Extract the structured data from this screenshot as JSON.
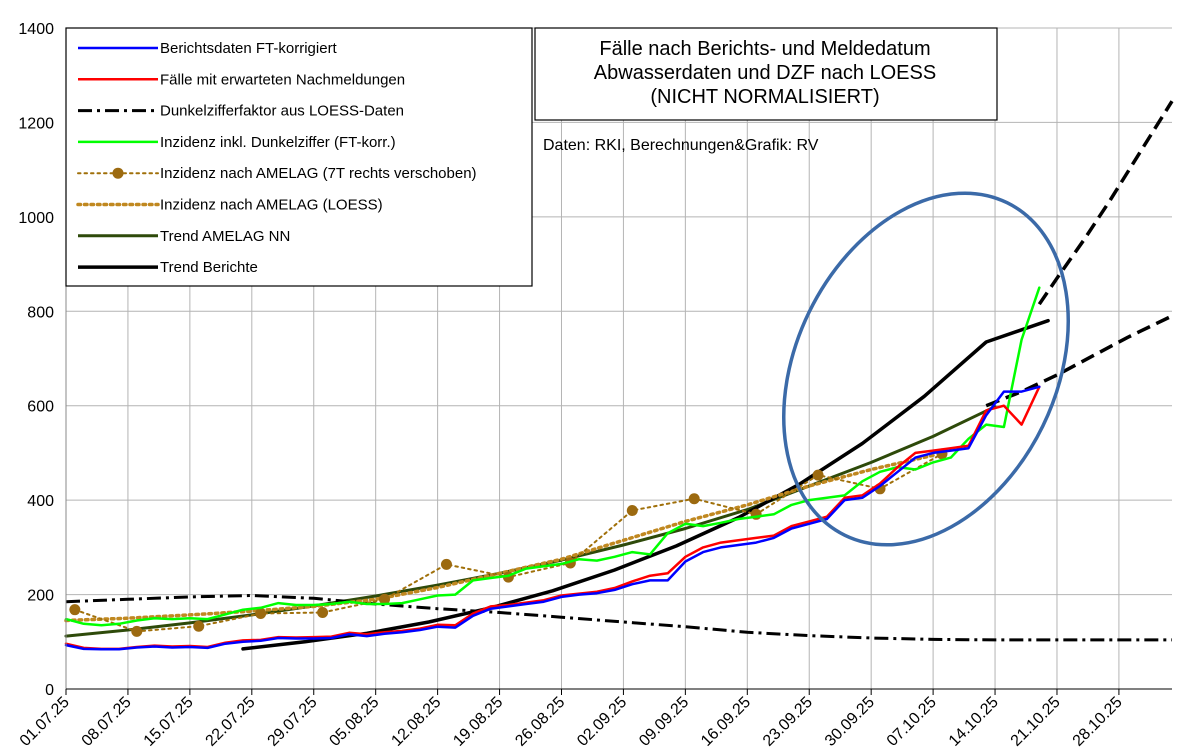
{
  "chart_data": {
    "type": "line",
    "title": [
      "Fälle nach Berichts- und Meldedatum",
      "Abwasserdaten und DZF nach LOESS",
      "(NICHT NORMALISIERT)"
    ],
    "source": "Daten: RKI, Berechnungen&Grafik: RV",
    "xlabel": "",
    "ylabel": "",
    "ylim": [
      0,
      1400
    ],
    "yticks": [
      0,
      200,
      400,
      600,
      800,
      1000,
      1200,
      1400
    ],
    "xlim": [
      "2025-07-01",
      "2025-11-03"
    ],
    "xtick_labels": [
      "01.07.25",
      "08.07.25",
      "15.07.25",
      "22.07.25",
      "29.07.25",
      "05.08.25",
      "12.08.25",
      "19.08.25",
      "26.08.25",
      "02.09.25",
      "09.09.25",
      "16.09.25",
      "23.09.25",
      "30.09.25",
      "07.10.25",
      "14.10.25",
      "21.10.25",
      "28.10.25"
    ],
    "xtick_dates": [
      "2025-07-01",
      "2025-07-08",
      "2025-07-15",
      "2025-07-22",
      "2025-07-29",
      "2025-08-05",
      "2025-08-12",
      "2025-08-19",
      "2025-08-26",
      "2025-09-02",
      "2025-09-09",
      "2025-09-16",
      "2025-09-23",
      "2025-09-30",
      "2025-10-07",
      "2025-10-14",
      "2025-10-21",
      "2025-10-28"
    ],
    "grid": true,
    "legend_position": "top-left",
    "series": [
      {
        "name": "Berichtsdaten FT-korrigiert",
        "color": "#0000ff",
        "style": "solid",
        "x": [
          "2025-07-01",
          "2025-07-03",
          "2025-07-05",
          "2025-07-07",
          "2025-07-09",
          "2025-07-11",
          "2025-07-13",
          "2025-07-15",
          "2025-07-17",
          "2025-07-19",
          "2025-07-21",
          "2025-07-23",
          "2025-07-25",
          "2025-07-27",
          "2025-07-29",
          "2025-07-31",
          "2025-08-02",
          "2025-08-04",
          "2025-08-06",
          "2025-08-08",
          "2025-08-10",
          "2025-08-12",
          "2025-08-14",
          "2025-08-16",
          "2025-08-18",
          "2025-08-20",
          "2025-08-22",
          "2025-08-24",
          "2025-08-26",
          "2025-08-28",
          "2025-08-30",
          "2025-09-01",
          "2025-09-03",
          "2025-09-05",
          "2025-09-07",
          "2025-09-09",
          "2025-09-11",
          "2025-09-13",
          "2025-09-15",
          "2025-09-17",
          "2025-09-19",
          "2025-09-21",
          "2025-09-23",
          "2025-09-25",
          "2025-09-27",
          "2025-09-29",
          "2025-10-01",
          "2025-10-03",
          "2025-10-05",
          "2025-10-07",
          "2025-10-09",
          "2025-10-11",
          "2025-10-13",
          "2025-10-15",
          "2025-10-17",
          "2025-10-19"
        ],
        "y": [
          93,
          85,
          84,
          84,
          88,
          90,
          88,
          89,
          87,
          96,
          100,
          102,
          108,
          107,
          107,
          108,
          116,
          112,
          117,
          120,
          125,
          132,
          130,
          155,
          170,
          175,
          180,
          185,
          195,
          200,
          203,
          210,
          222,
          230,
          230,
          270,
          290,
          300,
          305,
          310,
          320,
          340,
          350,
          360,
          400,
          405,
          430,
          460,
          490,
          500,
          505,
          510,
          580,
          630,
          630,
          640
        ]
      },
      {
        "name": "Fälle mit erwarteten Nachmeldungen",
        "color": "#ff0000",
        "style": "solid",
        "x": [
          "2025-07-01",
          "2025-07-03",
          "2025-07-05",
          "2025-07-07",
          "2025-07-09",
          "2025-07-11",
          "2025-07-13",
          "2025-07-15",
          "2025-07-17",
          "2025-07-19",
          "2025-07-21",
          "2025-07-23",
          "2025-07-25",
          "2025-07-27",
          "2025-07-29",
          "2025-07-31",
          "2025-08-02",
          "2025-08-04",
          "2025-08-06",
          "2025-08-08",
          "2025-08-10",
          "2025-08-12",
          "2025-08-14",
          "2025-08-16",
          "2025-08-18",
          "2025-08-20",
          "2025-08-22",
          "2025-08-24",
          "2025-08-26",
          "2025-08-28",
          "2025-08-30",
          "2025-09-01",
          "2025-09-03",
          "2025-09-05",
          "2025-09-07",
          "2025-09-09",
          "2025-09-11",
          "2025-09-13",
          "2025-09-15",
          "2025-09-17",
          "2025-09-19",
          "2025-09-21",
          "2025-09-23",
          "2025-09-25",
          "2025-09-27",
          "2025-09-29",
          "2025-10-01",
          "2025-10-03",
          "2025-10-05",
          "2025-10-07",
          "2025-10-09",
          "2025-10-11",
          "2025-10-13",
          "2025-10-15",
          "2025-10-17",
          "2025-10-19"
        ],
        "y": [
          96,
          87,
          85,
          85,
          89,
          92,
          90,
          91,
          89,
          98,
          103,
          104,
          110,
          109,
          110,
          111,
          119,
          116,
          120,
          123,
          128,
          136,
          135,
          160,
          175,
          178,
          183,
          188,
          198,
          202,
          206,
          214,
          228,
          240,
          245,
          280,
          300,
          310,
          315,
          320,
          325,
          345,
          355,
          365,
          405,
          410,
          435,
          470,
          500,
          505,
          510,
          515,
          590,
          600,
          560,
          640
        ]
      },
      {
        "name": "Dunkelzifferfaktor aus LOESS-Daten",
        "color": "#000000",
        "style": "dashdot",
        "x": [
          "2025-07-01",
          "2025-07-08",
          "2025-07-15",
          "2025-07-22",
          "2025-07-29",
          "2025-08-05",
          "2025-08-12",
          "2025-08-19",
          "2025-08-26",
          "2025-09-02",
          "2025-09-09",
          "2025-09-16",
          "2025-09-23",
          "2025-09-30",
          "2025-10-07",
          "2025-10-14",
          "2025-10-21",
          "2025-10-28",
          "2025-11-03"
        ],
        "y": [
          185,
          190,
          195,
          198,
          192,
          180,
          170,
          162,
          152,
          142,
          132,
          120,
          113,
          108,
          105,
          104,
          104,
          104,
          104
        ]
      },
      {
        "name": "Inzidenz inkl. Dunkelziffer (FT-korr.)",
        "color": "#00ff00",
        "style": "solid",
        "x": [
          "2025-07-01",
          "2025-07-03",
          "2025-07-05",
          "2025-07-07",
          "2025-07-09",
          "2025-07-11",
          "2025-07-13",
          "2025-07-15",
          "2025-07-17",
          "2025-07-19",
          "2025-07-21",
          "2025-07-23",
          "2025-07-25",
          "2025-07-27",
          "2025-07-29",
          "2025-07-31",
          "2025-08-02",
          "2025-08-04",
          "2025-08-06",
          "2025-08-08",
          "2025-08-10",
          "2025-08-12",
          "2025-08-14",
          "2025-08-16",
          "2025-08-18",
          "2025-08-20",
          "2025-08-22",
          "2025-08-24",
          "2025-08-26",
          "2025-08-28",
          "2025-08-30",
          "2025-09-01",
          "2025-09-03",
          "2025-09-05",
          "2025-09-07",
          "2025-09-09",
          "2025-09-11",
          "2025-09-13",
          "2025-09-15",
          "2025-09-17",
          "2025-09-19",
          "2025-09-21",
          "2025-09-23",
          "2025-09-25",
          "2025-09-27",
          "2025-09-29",
          "2025-10-01",
          "2025-10-03",
          "2025-10-05",
          "2025-10-07",
          "2025-10-09",
          "2025-10-11",
          "2025-10-13",
          "2025-10-15",
          "2025-10-17",
          "2025-10-19"
        ],
        "y": [
          148,
          138,
          135,
          138,
          145,
          150,
          148,
          150,
          148,
          158,
          168,
          172,
          182,
          178,
          178,
          180,
          185,
          180,
          180,
          182,
          190,
          198,
          200,
          230,
          235,
          240,
          255,
          260,
          265,
          275,
          272,
          280,
          290,
          285,
          330,
          350,
          345,
          352,
          360,
          365,
          370,
          390,
          400,
          405,
          410,
          440,
          460,
          470,
          465,
          480,
          490,
          530,
          560,
          555,
          740,
          850
        ]
      },
      {
        "name": "Inzidenz nach AMELAG (7T rechts verschoben)",
        "color": "#a0700a",
        "style": "dotted-markers",
        "x": [
          "2025-07-02",
          "2025-07-09",
          "2025-07-16",
          "2025-07-23",
          "2025-07-30",
          "2025-08-06",
          "2025-08-13",
          "2025-08-20",
          "2025-08-27",
          "2025-09-03",
          "2025-09-10",
          "2025-09-17",
          "2025-09-24",
          "2025-10-01",
          "2025-10-08"
        ],
        "y": [
          168,
          122,
          133,
          160,
          162,
          190,
          264,
          237,
          267,
          378,
          403,
          370,
          453,
          424,
          498
        ]
      },
      {
        "name": "Inzidenz nach AMELAG (LOESS)",
        "color": "#c08820",
        "style": "dotted",
        "x": [
          "2025-07-01",
          "2025-07-08",
          "2025-07-15",
          "2025-07-22",
          "2025-07-29",
          "2025-08-05",
          "2025-08-12",
          "2025-08-19",
          "2025-08-26",
          "2025-09-02",
          "2025-09-09",
          "2025-09-16",
          "2025-09-23",
          "2025-09-30",
          "2025-10-07"
        ],
        "y": [
          145,
          150,
          157,
          165,
          175,
          190,
          215,
          245,
          275,
          315,
          355,
          390,
          430,
          465,
          495
        ]
      },
      {
        "name": "Trend AMELAG NN",
        "color": "#2e4a0a",
        "style": "solid",
        "x": [
          "2025-07-01",
          "2025-07-08",
          "2025-07-15",
          "2025-07-22",
          "2025-07-29",
          "2025-08-05",
          "2025-08-12",
          "2025-08-19",
          "2025-08-26",
          "2025-09-02",
          "2025-09-09",
          "2025-09-16",
          "2025-09-23",
          "2025-09-30",
          "2025-10-07",
          "2025-10-14"
        ],
        "y": [
          112,
          125,
          140,
          157,
          176,
          197,
          220,
          245,
          273,
          305,
          340,
          380,
          430,
          480,
          535,
          598
        ]
      },
      {
        "name": "Trend Berichte",
        "color": "#000000",
        "style": "solid",
        "x": [
          "2025-07-21",
          "2025-07-28",
          "2025-08-04",
          "2025-08-11",
          "2025-08-18",
          "2025-08-25",
          "2025-09-01",
          "2025-09-08",
          "2025-09-15",
          "2025-09-22",
          "2025-09-29",
          "2025-10-06",
          "2025-10-13",
          "2025-10-20"
        ],
        "y": [
          85,
          100,
          118,
          142,
          172,
          208,
          252,
          303,
          363,
          435,
          520,
          620,
          735,
          780
        ]
      },
      {
        "name": "",
        "color": "#000000",
        "style": "dashed",
        "x": [
          "2025-10-13",
          "2025-10-17",
          "2025-10-21",
          "2025-10-25",
          "2025-10-29",
          "2025-11-03"
        ],
        "y": [
          600,
          630,
          665,
          705,
          745,
          790
        ]
      },
      {
        "name": "",
        "color": "#000000",
        "style": "dashed",
        "x": [
          "2025-10-19",
          "2025-10-21",
          "2025-10-24",
          "2025-10-27",
          "2025-10-30",
          "2025-11-03"
        ],
        "y": [
          815,
          870,
          950,
          1035,
          1125,
          1245
        ]
      }
    ]
  }
}
